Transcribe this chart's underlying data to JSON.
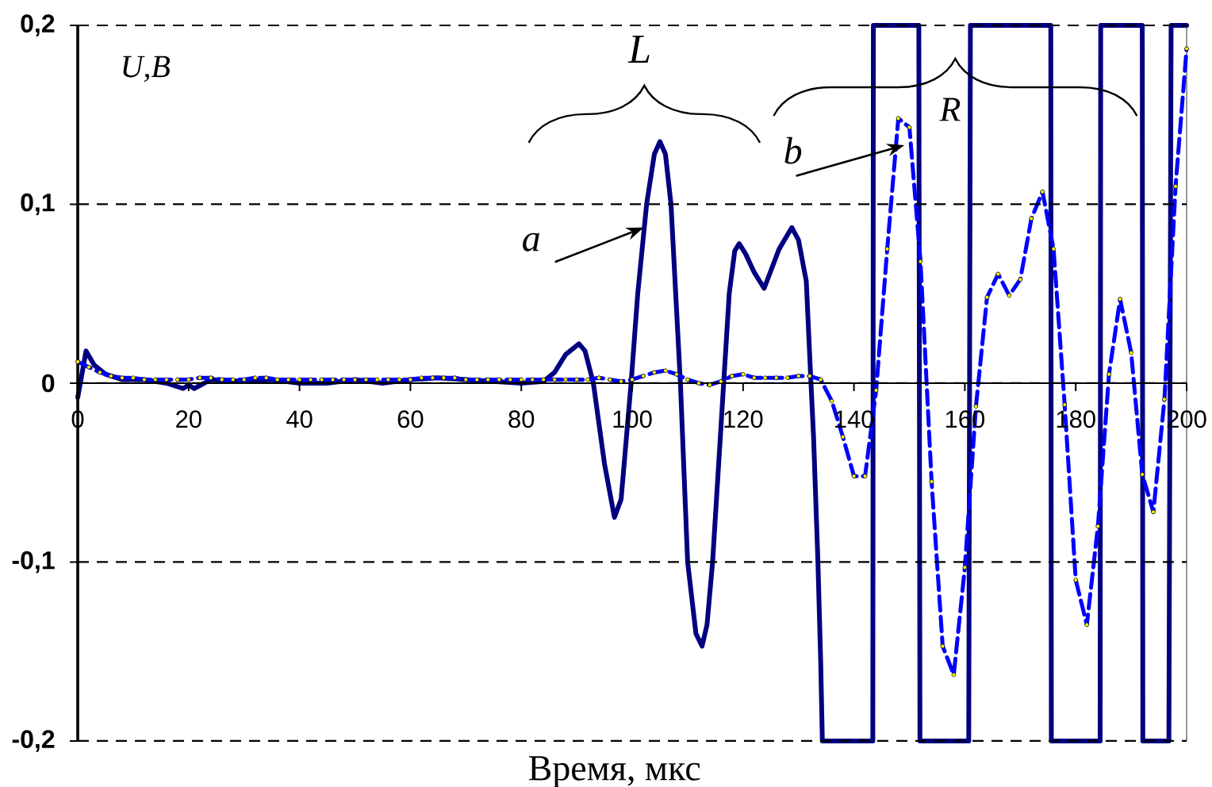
{
  "chart_data": {
    "type": "line",
    "xlabel": "Время, мкс",
    "ylabel": "U,В",
    "xlim": [
      0,
      200
    ],
    "ylim": [
      -0.2,
      0.2
    ],
    "xticks": [
      0,
      20,
      40,
      60,
      80,
      100,
      120,
      140,
      160,
      180,
      200
    ],
    "yticks": [
      {
        "value": -0.2,
        "label": "-0,2"
      },
      {
        "value": -0.1,
        "label": "-0,1"
      },
      0,
      {
        "value": 0.1,
        "label": "0,1"
      },
      {
        "value": 0.2,
        "label": "0,2"
      }
    ],
    "grid": "y",
    "annotations": [
      {
        "text": "a",
        "x": 102.1,
        "y": 0.087
      },
      {
        "text": "b",
        "x": 149.1,
        "y": 0.133
      },
      "L",
      "R"
    ],
    "series": [
      {
        "color": "#000080",
        "line_style": "solid",
        "x": [
          0,
          1.5,
          3,
          5,
          8,
          12,
          16,
          19,
          20,
          21,
          24,
          30,
          35,
          40,
          45,
          50,
          55,
          60,
          65,
          70,
          75,
          80,
          84,
          86,
          88,
          90.4,
          91.5,
          93,
          95,
          96.8,
          98,
          99.8,
          101,
          102.6,
          104,
          105,
          106,
          107,
          108.7,
          110,
          111.5,
          112.6,
          113.5,
          114.5,
          116.5,
          117.5,
          118.5,
          119.3,
          120.5,
          122,
          123.8,
          126.5,
          128.8,
          130,
          131.4,
          132.2,
          132.7,
          133.5,
          134,
          134.3,
          143.4,
          143.5,
          151.7,
          151.9,
          160.7,
          161,
          175.5,
          175.6,
          184.4,
          184.5,
          192,
          192.1,
          196.8,
          197.2,
          200
        ],
        "values": [
          -0.008,
          0.018,
          0.01,
          0.005,
          0.002,
          0.002,
          0.0,
          -0.003,
          -0.001,
          -0.003,
          0.002,
          0.001,
          0.002,
          0.0,
          0.0,
          0.002,
          0.0,
          0.002,
          0.003,
          0.002,
          0.001,
          0.0,
          0.001,
          0.006,
          0.016,
          0.022,
          0.018,
          0.0,
          -0.045,
          -0.075,
          -0.065,
          0.0,
          0.05,
          0.1,
          0.128,
          0.135,
          0.128,
          0.1,
          0.0,
          -0.1,
          -0.14,
          -0.147,
          -0.135,
          -0.1,
          0.0,
          0.05,
          0.074,
          0.078,
          0.072,
          0.062,
          0.053,
          0.075,
          0.087,
          0.08,
          0.057,
          0.003,
          -0.029,
          -0.1,
          -0.156,
          -0.2,
          -0.2,
          0.2,
          0.2,
          -0.2,
          -0.2,
          0.2,
          0.2,
          -0.2,
          -0.2,
          0.2,
          0.2,
          -0.2,
          -0.2,
          0.2,
          0.2
        ]
      },
      {
        "color": "#0000ff",
        "line_style": "dashed",
        "x": [
          0,
          2,
          4,
          6,
          8,
          10,
          12,
          14,
          16,
          18,
          20,
          22,
          24,
          26,
          28,
          30,
          32,
          34,
          36,
          38,
          40,
          42,
          44,
          46,
          48,
          50,
          52,
          54,
          56,
          58,
          60,
          62,
          64,
          66,
          68,
          70,
          72,
          74,
          76,
          78,
          80,
          82,
          84,
          86,
          88,
          90,
          92,
          94,
          96,
          98,
          100,
          102,
          104,
          106,
          108,
          110,
          112,
          114,
          116,
          118,
          120,
          122,
          124,
          126,
          128,
          130,
          132,
          134,
          136,
          138,
          140,
          142,
          144,
          146,
          148,
          150,
          152,
          154,
          156,
          158,
          160,
          162,
          164,
          166,
          168,
          170,
          172,
          174,
          176,
          178,
          180,
          182,
          184,
          186,
          188,
          190,
          192,
          194,
          196,
          198,
          200
        ],
        "values": [
          0.012,
          0.009,
          0.006,
          0.004,
          0.003,
          0.003,
          0.002,
          0.002,
          0.002,
          0.002,
          0.002,
          0.003,
          0.003,
          0.002,
          0.002,
          0.002,
          0.003,
          0.003,
          0.002,
          0.002,
          0.002,
          0.002,
          0.002,
          0.002,
          0.002,
          0.002,
          0.002,
          0.002,
          0.002,
          0.002,
          0.002,
          0.003,
          0.003,
          0.003,
          0.003,
          0.002,
          0.002,
          0.002,
          0.002,
          0.002,
          0.002,
          0.002,
          0.002,
          0.002,
          0.002,
          0.002,
          0.002,
          0.003,
          0.002,
          0.001,
          0.002,
          0.004,
          0.006,
          0.007,
          0.005,
          0.002,
          0.0,
          -0.001,
          0.001,
          0.004,
          0.005,
          0.003,
          0.003,
          0.003,
          0.003,
          0.004,
          0.004,
          0.002,
          -0.01,
          -0.03,
          -0.052,
          -0.052,
          -0.004,
          0.075,
          0.148,
          0.143,
          0.068,
          -0.055,
          -0.147,
          -0.163,
          -0.103,
          -0.013,
          0.048,
          0.061,
          0.049,
          0.058,
          0.092,
          0.107,
          0.075,
          -0.012,
          -0.11,
          -0.135,
          -0.08,
          0.005,
          0.047,
          0.017,
          -0.051,
          -0.072,
          -0.009,
          0.11,
          0.187
        ]
      },
      {
        "type": "scatter",
        "color": "#ffff00",
        "marker": "circle",
        "x": [
          0,
          2,
          4,
          6,
          8,
          10,
          12,
          14,
          16,
          18,
          20,
          22,
          24,
          26,
          28,
          30,
          32,
          34,
          36,
          38,
          40,
          42,
          44,
          46,
          48,
          50,
          52,
          54,
          56,
          58,
          60,
          62,
          64,
          66,
          68,
          70,
          72,
          74,
          76,
          78,
          80,
          82,
          84,
          86,
          88,
          90,
          92,
          94,
          96,
          98,
          100,
          102,
          104,
          106,
          108,
          110,
          112,
          114,
          116,
          118,
          120,
          122,
          124,
          126,
          128,
          130,
          132,
          134,
          136,
          138,
          140,
          142,
          144,
          146,
          148,
          150,
          152,
          154,
          156,
          158,
          160,
          162,
          164,
          166,
          168,
          170,
          172,
          174,
          176,
          178,
          180,
          182,
          184,
          186,
          188,
          190,
          192,
          194,
          196,
          198,
          200
        ],
        "values": [
          0.012,
          0.009,
          0.006,
          0.004,
          0.003,
          0.003,
          0.002,
          0.002,
          0.002,
          0.002,
          0.002,
          0.003,
          0.003,
          0.002,
          0.002,
          0.002,
          0.003,
          0.003,
          0.002,
          0.002,
          0.002,
          0.002,
          0.002,
          0.002,
          0.002,
          0.002,
          0.002,
          0.002,
          0.002,
          0.002,
          0.002,
          0.003,
          0.003,
          0.003,
          0.003,
          0.002,
          0.002,
          0.002,
          0.002,
          0.002,
          0.002,
          0.002,
          0.002,
          0.002,
          0.002,
          0.002,
          0.002,
          0.003,
          0.002,
          0.001,
          0.002,
          0.004,
          0.006,
          0.007,
          0.005,
          0.002,
          0.0,
          -0.001,
          0.001,
          0.004,
          0.005,
          0.003,
          0.003,
          0.003,
          0.003,
          0.004,
          0.004,
          0.002,
          -0.01,
          -0.03,
          -0.052,
          -0.052,
          -0.004,
          0.075,
          0.148,
          0.143,
          0.068,
          -0.055,
          -0.147,
          -0.163,
          -0.103,
          -0.013,
          0.048,
          0.061,
          0.049,
          0.058,
          0.092,
          0.107,
          0.075,
          -0.012,
          -0.11,
          -0.135,
          -0.08,
          0.005,
          0.047,
          0.017,
          -0.051,
          -0.072,
          -0.009,
          0.11,
          0.187
        ]
      }
    ]
  }
}
